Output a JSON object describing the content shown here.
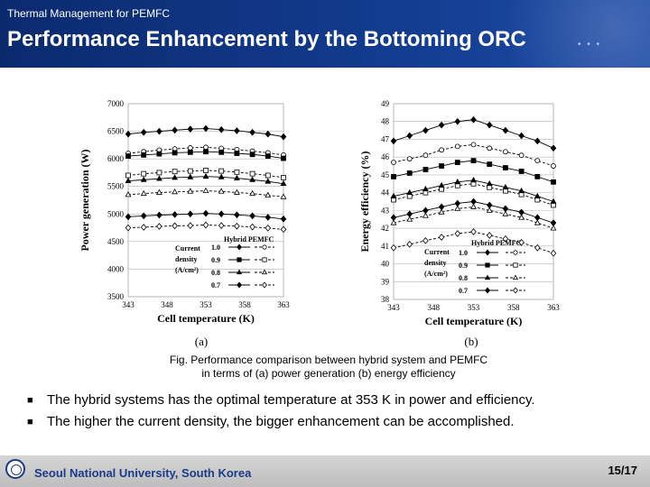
{
  "header": {
    "course": "Thermal Management for PEMFC",
    "title": "Performance Enhancement by the Bottoming ORC"
  },
  "caption": {
    "line1": "Fig. Performance comparison between hybrid system and PEMFC",
    "line2": "in terms of (a) power generation (b) energy efficiency"
  },
  "bullets": [
    "The hybrid systems has the optimal temperature at 353 K in power and efficiency.",
    "The higher the current density, the bigger enhancement can be accomplished."
  ],
  "footer": {
    "university": "Seoul National University, South Korea",
    "page": "15/17"
  },
  "chart_data": [
    {
      "type": "line",
      "panel": "(a)",
      "xlabel": "Cell temperature (K)",
      "ylabel": "Power generation (W)",
      "xlim": [
        343,
        363
      ],
      "ylim": [
        3500,
        7000
      ],
      "xticks": [
        343,
        348,
        353,
        358,
        363
      ],
      "yticks": [
        3500,
        4000,
        4500,
        5000,
        5500,
        6000,
        6500,
        7000
      ],
      "x": [
        343,
        345,
        347,
        349,
        351,
        353,
        355,
        357,
        359,
        361,
        363
      ],
      "legend": {
        "header": "Hybrid PEMFC",
        "title_lines": [
          "Current",
          "density",
          "(A/cm²)"
        ],
        "labels": [
          "1.0",
          "0.9",
          "0.8",
          "0.7"
        ]
      },
      "series": [
        {
          "name": "Hybrid 1.0",
          "marker": "diamond",
          "filled": true,
          "values": [
            6450,
            6480,
            6500,
            6520,
            6540,
            6550,
            6530,
            6510,
            6480,
            6450,
            6400
          ]
        },
        {
          "name": "PEMFC 1.0",
          "marker": "circle",
          "filled": false,
          "values": [
            6100,
            6130,
            6160,
            6180,
            6200,
            6210,
            6190,
            6170,
            6140,
            6110,
            6070
          ]
        },
        {
          "name": "Hybrid 0.9",
          "marker": "square",
          "filled": true,
          "values": [
            6050,
            6070,
            6090,
            6110,
            6120,
            6130,
            6120,
            6100,
            6080,
            6050,
            6010
          ]
        },
        {
          "name": "PEMFC 0.9",
          "marker": "square",
          "filled": false,
          "values": [
            5700,
            5730,
            5750,
            5770,
            5780,
            5790,
            5780,
            5760,
            5730,
            5700,
            5660
          ]
        },
        {
          "name": "Hybrid 0.8",
          "marker": "triangle",
          "filled": true,
          "values": [
            5600,
            5620,
            5640,
            5660,
            5670,
            5680,
            5670,
            5650,
            5620,
            5590,
            5550
          ]
        },
        {
          "name": "PEMFC 0.8",
          "marker": "triangle",
          "filled": false,
          "values": [
            5350,
            5370,
            5390,
            5400,
            5410,
            5420,
            5410,
            5390,
            5370,
            5340,
            5310
          ]
        },
        {
          "name": "Hybrid 0.7",
          "marker": "diamond",
          "filled": true,
          "values": [
            4950,
            4965,
            4980,
            4990,
            5000,
            5010,
            5000,
            4985,
            4965,
            4940,
            4910
          ]
        },
        {
          "name": "PEMFC 0.7",
          "marker": "diamond",
          "filled": false,
          "values": [
            4750,
            4760,
            4775,
            4785,
            4790,
            4800,
            4790,
            4780,
            4765,
            4745,
            4720
          ]
        }
      ]
    },
    {
      "type": "line",
      "panel": "(b)",
      "xlabel": "Cell temperature (K)",
      "ylabel": "Energy efficiency (%)",
      "xlim": [
        343,
        363
      ],
      "ylim": [
        38,
        49
      ],
      "xticks": [
        343,
        348,
        353,
        358,
        363
      ],
      "yticks": [
        38,
        39,
        40,
        41,
        42,
        43,
        44,
        45,
        46,
        47,
        48,
        49
      ],
      "x": [
        343,
        345,
        347,
        349,
        351,
        353,
        355,
        357,
        359,
        361,
        363
      ],
      "legend": {
        "header": "Hybrid PEMFC",
        "title_lines": [
          "Current",
          "density",
          "(A/cm²)"
        ],
        "labels": [
          "1.0",
          "0.9",
          "0.8",
          "0.7"
        ]
      },
      "series": [
        {
          "name": "Hybrid 1.0",
          "marker": "diamond",
          "filled": true,
          "values": [
            46.9,
            47.2,
            47.5,
            47.8,
            48.0,
            48.1,
            47.8,
            47.5,
            47.2,
            46.9,
            46.5
          ]
        },
        {
          "name": "PEMFC 1.0",
          "marker": "circle",
          "filled": false,
          "values": [
            45.7,
            45.9,
            46.1,
            46.4,
            46.6,
            46.7,
            46.5,
            46.3,
            46.1,
            45.8,
            45.5
          ]
        },
        {
          "name": "Hybrid 0.9",
          "marker": "square",
          "filled": true,
          "values": [
            44.9,
            45.1,
            45.3,
            45.5,
            45.7,
            45.8,
            45.6,
            45.4,
            45.2,
            44.9,
            44.6
          ]
        },
        {
          "name": "PEMFC 0.9",
          "marker": "square",
          "filled": false,
          "values": [
            43.6,
            43.8,
            44.0,
            44.2,
            44.4,
            44.5,
            44.3,
            44.1,
            43.9,
            43.6,
            43.3
          ]
        },
        {
          "name": "Hybrid 0.8",
          "marker": "triangle",
          "filled": true,
          "values": [
            43.8,
            44.0,
            44.2,
            44.4,
            44.6,
            44.7,
            44.5,
            44.3,
            44.1,
            43.8,
            43.5
          ]
        },
        {
          "name": "PEMFC 0.8",
          "marker": "triangle",
          "filled": false,
          "values": [
            42.3,
            42.5,
            42.7,
            42.9,
            43.1,
            43.2,
            43.0,
            42.8,
            42.6,
            42.3,
            42.0
          ]
        },
        {
          "name": "Hybrid 0.7",
          "marker": "diamond",
          "filled": true,
          "values": [
            42.6,
            42.8,
            43.0,
            43.2,
            43.4,
            43.5,
            43.3,
            43.1,
            42.9,
            42.6,
            42.3
          ]
        },
        {
          "name": "PEMFC 0.7",
          "marker": "diamond",
          "filled": false,
          "values": [
            40.9,
            41.1,
            41.3,
            41.5,
            41.7,
            41.8,
            41.6,
            41.4,
            41.2,
            40.9,
            40.6
          ]
        }
      ]
    }
  ]
}
